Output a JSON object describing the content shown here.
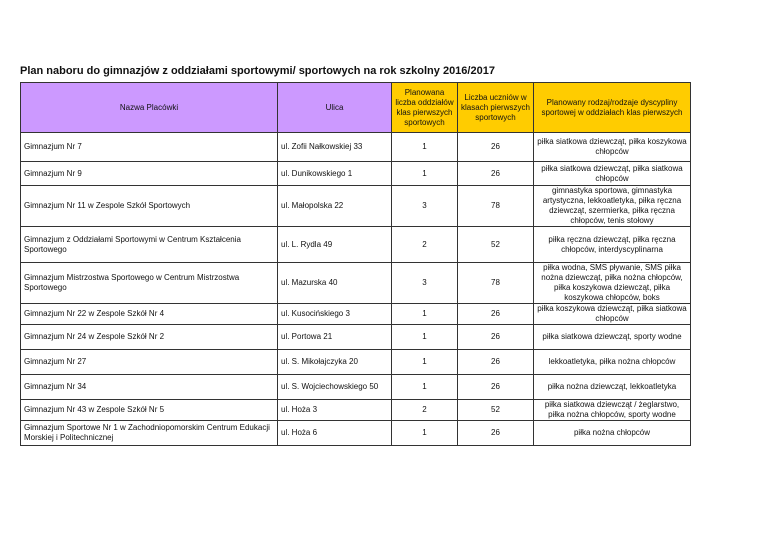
{
  "title": "Plan naboru do gimnazjów z oddziałami sportowymi/ sportowych na rok szkolny 2016/2017",
  "headers": [
    "Nazwa Placówki",
    "Ulica",
    "Planowana liczba oddziałów klas pierwszych sportowych",
    "Liczba uczniów w klasach pierwszych sportowych",
    "Planowany rodzaj/rodzaje dyscypliny sportowej w oddziałach klas pierwszych"
  ],
  "colors": {
    "header_purple": "#cc99ff",
    "header_yellow": "#ffcc00"
  },
  "rows": [
    {
      "name": "Gimnazjum Nr 7",
      "street": "ul. Zofii Nałkowskiej 33",
      "classes": "1",
      "students": "26",
      "sports": "piłka siatkowa dziewcząt, piłka koszykowa chłopców"
    },
    {
      "name": "Gimnazjum Nr 9",
      "street": "ul. Dunikowskiego 1",
      "classes": "1",
      "students": "26",
      "sports": "piłka siatkowa dziewcząt, piłka siatkowa chłopców"
    },
    {
      "name": "Gimnazjum Nr 11 w Zespole Szkół Sportowych",
      "street": "ul. Małopolska 22",
      "classes": "3",
      "students": "78",
      "sports": "gimnastyka sportowa, gimnastyka artystyczna, lekkoatletyka, piłka ręczna dziewcząt, szermierka, piłka ręczna chłopców, tenis stołowy"
    },
    {
      "name": "Gimnazjum z Oddziałami Sportowymi w Centrum Kształcenia Sportowego",
      "street": "ul. L. Rydla 49",
      "classes": "2",
      "students": "52",
      "sports": "piłka ręczna dziewcząt, piłka ręczna chłopców, interdyscyplinarna"
    },
    {
      "name": "Gimnazjum Mistrzostwa Sportowego w Centrum Mistrzostwa Sportowego",
      "street": "ul. Mazurska 40",
      "classes": "3",
      "students": "78",
      "sports": "piłka wodna, SMS pływanie, SMS piłka nożna dziewcząt, piłka nożna chłopców, piłka koszykowa dziewcząt, piłka koszykowa chłopców, boks"
    },
    {
      "name": "Gimnazjum Nr 22 w Zespole Szkół Nr 4",
      "street": "ul. Kusocińskiego 3",
      "classes": "1",
      "students": "26",
      "sports": "piłka koszykowa dziewcząt, piłka siatkowa chłopców"
    },
    {
      "name": "Gimnazjum Nr 24 w Zespole Szkół Nr 2",
      "street": "ul. Portowa 21",
      "classes": "1",
      "students": "26",
      "sports": "piłka siatkowa dziewcząt, sporty wodne"
    },
    {
      "name": "Gimnazjum Nr 27",
      "street": "ul. S. Mikołajczyka 20",
      "classes": "1",
      "students": "26",
      "sports": "lekkoatletyka, piłka nożna chłopców"
    },
    {
      "name": "Gimnazjum Nr 34",
      "street": "ul. S. Wojciechowskiego 50",
      "classes": "1",
      "students": "26",
      "sports": "piłka nożna dziewcząt, lekkoatletyka"
    },
    {
      "name": "Gimnazjum Nr 43 w Zespole Szkół Nr 5",
      "street": "ul. Hoża 3",
      "classes": "2",
      "students": "52",
      "sports": "piłka siatkowa dziewcząt / żeglarstwo, piłka nożna chłopców, sporty wodne"
    },
    {
      "name": "Gimnazjum Sportowe Nr 1 w Zachodniopomorskim Centrum Edukacji Morskiej i Politechnicznej",
      "street": "ul. Hoża 6",
      "classes": "1",
      "students": "26",
      "sports": "piłka nożna chłopców"
    }
  ]
}
